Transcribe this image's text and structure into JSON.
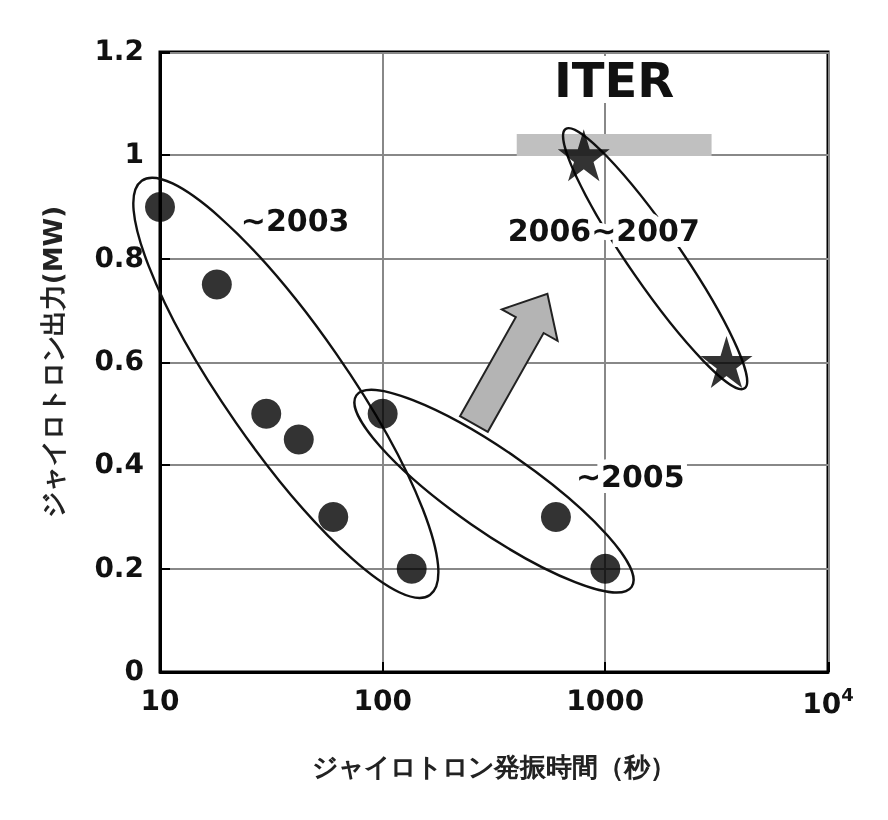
{
  "chart_data": {
    "type": "scatter",
    "xlabel": "ジャイロトロン発振時間（秒）",
    "ylabel": "ジャイロトロン出力(MW)",
    "log": "x",
    "xlim": [
      10,
      10000
    ],
    "xticks": [
      10,
      100,
      1000,
      {
        "value": 10000,
        "label": "10$^{4}$"
      }
    ],
    "ylim": [
      0,
      1.2
    ],
    "yticks": [
      0,
      0.2,
      0.4,
      0.6,
      0.8,
      1,
      1.2
    ],
    "grid": true,
    "legend": false,
    "series": [
      {
        "name": "~2003",
        "marker": "circle",
        "color": "#000000",
        "x": [
          10,
          18,
          30,
          42,
          60,
          135
        ],
        "values": [
          0.9,
          0.75,
          0.5,
          0.45,
          0.3,
          0.2
        ]
      },
      {
        "name": "~2005",
        "marker": "circle",
        "color": "#000000",
        "x": [
          100,
          600,
          1000
        ],
        "values": [
          0.5,
          0.3,
          0.2
        ]
      },
      {
        "name": "2006~2007",
        "marker": "star",
        "color": "#000000",
        "x": [
          800,
          3500
        ],
        "values": [
          1.0,
          0.6
        ]
      },
      {
        "name": "ITER",
        "type": "line",
        "marker": "none",
        "color": "#c0c0c0",
        "x": [
          400,
          3000
        ],
        "values": [
          1.02,
          1.02
        ]
      }
    ]
  }
}
